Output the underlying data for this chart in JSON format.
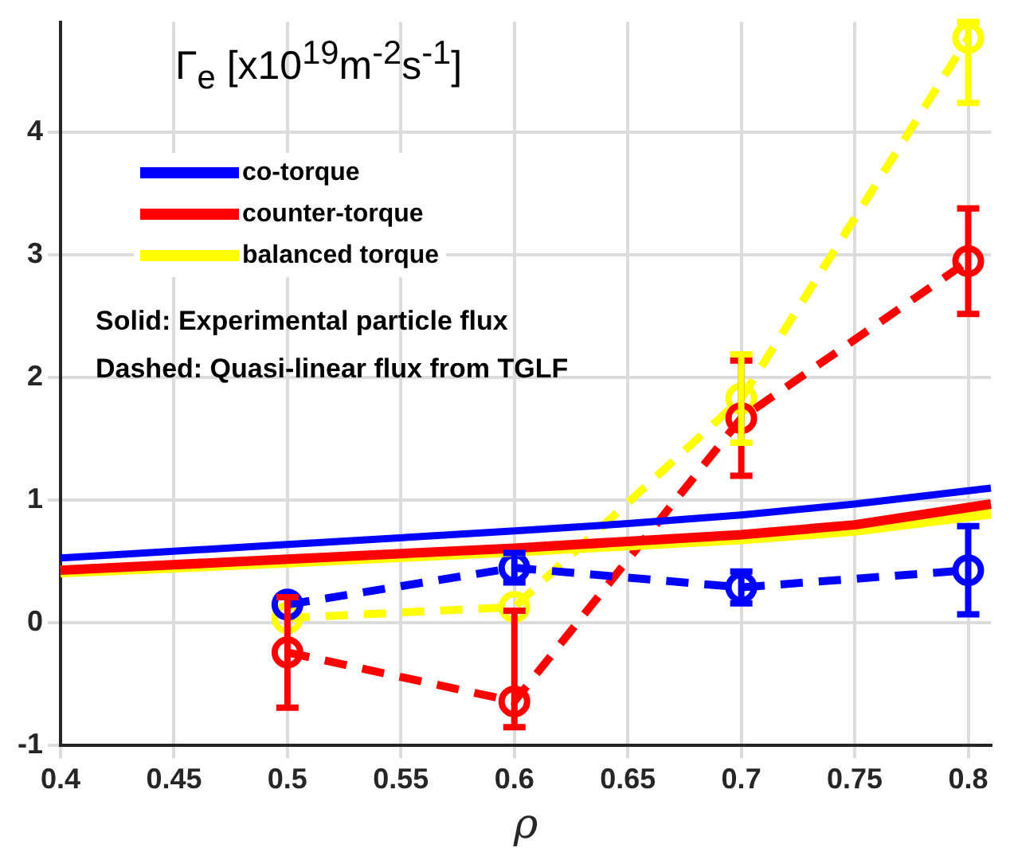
{
  "chart_data": {
    "type": "line",
    "xlabel": "ρ",
    "annotations": [
      "Γ$_{e}$ [x10$^{19}$m$^{-2}$s$^{-1}$]",
      "Solid: Experimental particle flux",
      "Dashed: Quasi-linear flux from TGLF"
    ],
    "xlim": [
      0.4,
      0.81
    ],
    "ylim": [
      -1,
      4.9
    ],
    "xticks": [
      0.4,
      0.45,
      0.5,
      0.55,
      0.6,
      0.65,
      0.7,
      0.75,
      0.8
    ],
    "yticks": [
      -1,
      0,
      1,
      2,
      3,
      4
    ],
    "grid": true,
    "legend": "top left",
    "series": [
      {
        "name": "co-torque",
        "color": "#0000ff",
        "x": [
          0.4,
          0.5,
          0.6,
          0.65,
          0.7,
          0.75,
          0.81
        ],
        "values": [
          0.53,
          0.64,
          0.75,
          0.81,
          0.88,
          0.97,
          1.1
        ],
        "line_style": "solid",
        "marker": "none"
      },
      {
        "name": "counter-torque",
        "color": "#ff0000",
        "x": [
          0.4,
          0.5,
          0.6,
          0.7,
          0.75,
          0.81
        ],
        "values": [
          0.43,
          0.52,
          0.61,
          0.72,
          0.8,
          0.97
        ],
        "line_style": "solid",
        "marker": "none"
      },
      {
        "name": "balanced torque",
        "color": "#ffff00",
        "x": [
          0.4,
          0.5,
          0.6,
          0.7,
          0.75,
          0.81
        ],
        "values": [
          0.42,
          0.5,
          0.59,
          0.69,
          0.76,
          0.9
        ],
        "line_style": "solid",
        "marker": "none"
      },
      {
        "color": "#0000ff",
        "x": [
          0.5,
          0.6,
          0.7,
          0.8
        ],
        "values": [
          0.15,
          0.45,
          0.29,
          0.43
        ],
        "errors": [
          null,
          0.12,
          0.13,
          0.36
        ],
        "line_style": "dashed",
        "marker": "circle"
      },
      {
        "color": "#ff0000",
        "x": [
          0.5,
          0.6,
          0.7,
          0.8
        ],
        "values": [
          -0.24,
          -0.64,
          1.67,
          2.95
        ],
        "errors": [
          0.45,
          [
            -0.85,
            0.1
          ],
          0.47,
          0.43
        ],
        "line_style": "dashed",
        "marker": "circle"
      },
      {
        "color": "#ffff00",
        "x": [
          0.5,
          0.6,
          0.7,
          0.8
        ],
        "values": [
          0.04,
          0.13,
          1.83,
          4.77
        ],
        "errors": [
          null,
          null,
          0.36,
          [
            4.24,
            4.9
          ]
        ],
        "line_style": "dashed",
        "marker": "circle"
      }
    ]
  }
}
